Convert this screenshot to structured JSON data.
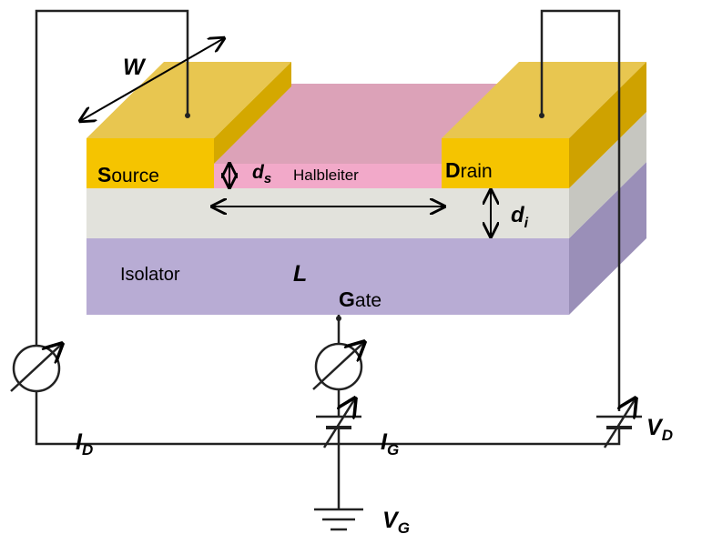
{
  "labels": {
    "source_initial": "S",
    "source_rest": "ource",
    "drain_initial": "D",
    "drain_rest": "rain",
    "gate_initial": "G",
    "gate_rest": "ate",
    "isolator": "Isolator",
    "semiconductor": "Halbleiter",
    "width_symbol": "W",
    "length_symbol": "L",
    "ds_symbol": "d",
    "ds_sub": "s",
    "di_symbol": "d",
    "di_sub": "i",
    "id_symbol": "I",
    "id_sub": "D",
    "ig_symbol": "I",
    "ig_sub": "G",
    "vd_symbol": "V",
    "vd_sub": "D",
    "vg_symbol": "V",
    "vg_sub": "G"
  },
  "colors": {
    "electrode": "#f5c400",
    "electrode_top": "#e8c650",
    "semiconductor": "#f2a9c9",
    "semiconductor_top": "#dca2b8",
    "insulator": "#e2e2dc",
    "gate": "#b8acd4",
    "wire": "#222222"
  },
  "icons": {
    "ammeter_left": "ammeter-icon",
    "ammeter_center": "ammeter-icon",
    "battery_right": "variable-battery-icon",
    "battery_center": "variable-battery-icon",
    "ground": "ground-icon"
  }
}
